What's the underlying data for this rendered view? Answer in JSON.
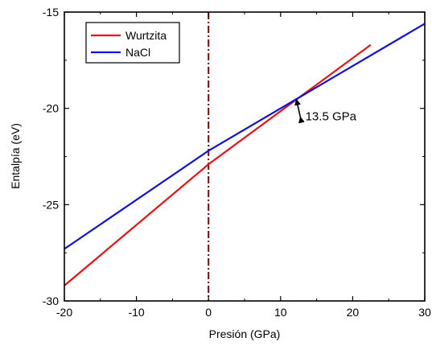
{
  "chart_data": {
    "type": "line",
    "xlabel": "Presión (GPa)",
    "ylabel": "Entalpía (eV)",
    "xlim": [
      -20,
      30
    ],
    "ylim": [
      -30,
      -15
    ],
    "xticks": [
      -20,
      -10,
      0,
      10,
      20,
      30
    ],
    "yticks": [
      -30,
      -25,
      -20,
      -15
    ],
    "legend_position": "top-left",
    "vertical_reference_line": {
      "x": 0,
      "color": "#8b0000",
      "style": "dash-dot"
    },
    "series": [
      {
        "name": "Wurtzita",
        "color": "#ee1111",
        "x": [
          -20,
          0,
          22.5
        ],
        "y": [
          -29.2,
          -22.9,
          -16.7
        ]
      },
      {
        "name": "NaCl",
        "color": "#1111dd",
        "x": [
          -20,
          0,
          30
        ],
        "y": [
          -27.3,
          -22.2,
          -15.6
        ]
      }
    ],
    "annotations": [
      {
        "text": "13.5 GPa",
        "arrow_from": [
          15,
          -20.5
        ],
        "arrow_to": [
          12,
          -19.5
        ]
      }
    ]
  }
}
